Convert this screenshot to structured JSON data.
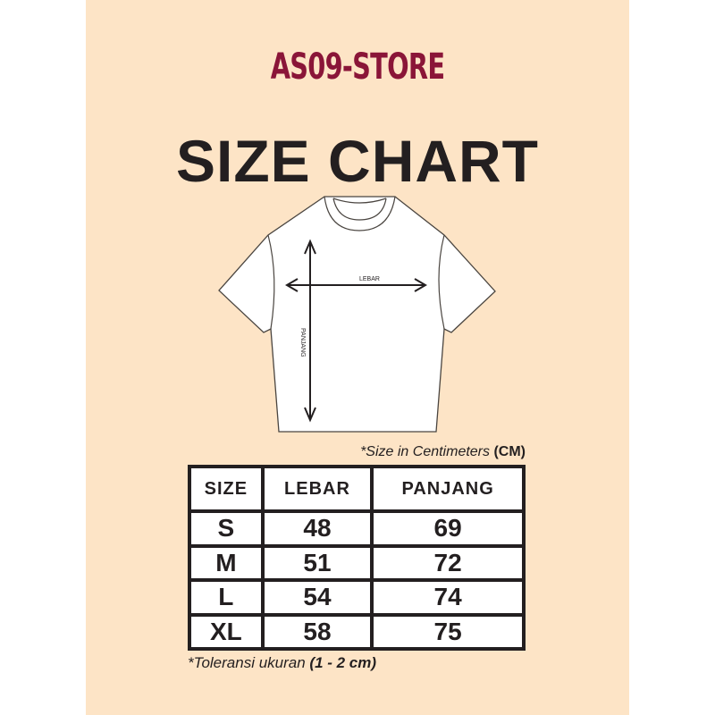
{
  "brand": {
    "logo_text": "AS09-STORE",
    "color": "#8a1538"
  },
  "title": "SIZE CHART",
  "diagram": {
    "width_label": "LEBAR",
    "length_label": "PANJANG"
  },
  "unit_note": {
    "prefix": "*Size in Centimeters ",
    "unit": "(CM)"
  },
  "table": {
    "headers": [
      "SIZE",
      "LEBAR",
      "PANJANG"
    ],
    "rows": [
      {
        "size": "S",
        "lebar": "48",
        "panjang": "69"
      },
      {
        "size": "M",
        "lebar": "51",
        "panjang": "72"
      },
      {
        "size": "L",
        "lebar": "54",
        "panjang": "74"
      },
      {
        "size": "XL",
        "lebar": "58",
        "panjang": "75"
      }
    ]
  },
  "tolerance_note": {
    "prefix": "*Toleransi ukuran ",
    "range": "(1 - 2 cm)"
  },
  "colors": {
    "background": "#fde4c6",
    "text": "#231f20"
  }
}
